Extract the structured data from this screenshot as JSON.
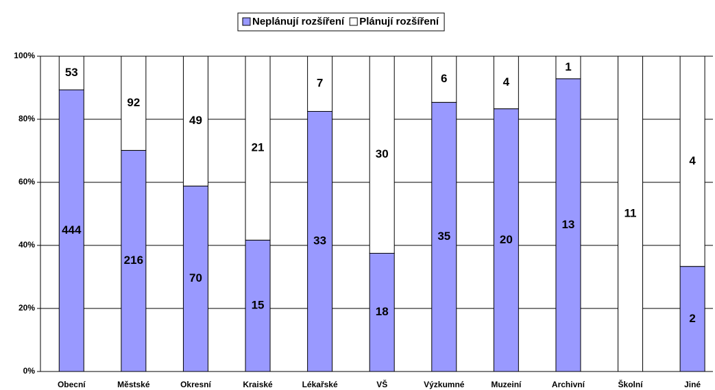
{
  "chart_data": {
    "type": "bar",
    "stacking": "percent",
    "categories": [
      "Obecní",
      "Městské",
      "Okresní",
      "Kraiské",
      "Lékařské",
      "VŠ",
      "Výzkumné",
      "Muzeiní",
      "Archivní",
      "Školní",
      "Jiné"
    ],
    "series": [
      {
        "name": "Neplánují rozšíření",
        "color": "#9999ff",
        "values": [
          444,
          216,
          70,
          15,
          33,
          18,
          35,
          20,
          13,
          0,
          2
        ]
      },
      {
        "name": "Plánují rozšíření",
        "color": "#ffffff",
        "values": [
          53,
          92,
          49,
          21,
          7,
          30,
          6,
          4,
          1,
          11,
          4
        ]
      }
    ],
    "ylim": [
      0,
      100
    ],
    "yticks": [
      {
        "value": 0,
        "label": "0%"
      },
      {
        "value": 20,
        "label": "20%"
      },
      {
        "value": 40,
        "label": "40%"
      },
      {
        "value": 60,
        "label": "60%"
      },
      {
        "value": 80,
        "label": "80%"
      },
      {
        "value": 100,
        "label": "100%"
      }
    ],
    "grid": true,
    "legend": "top"
  }
}
